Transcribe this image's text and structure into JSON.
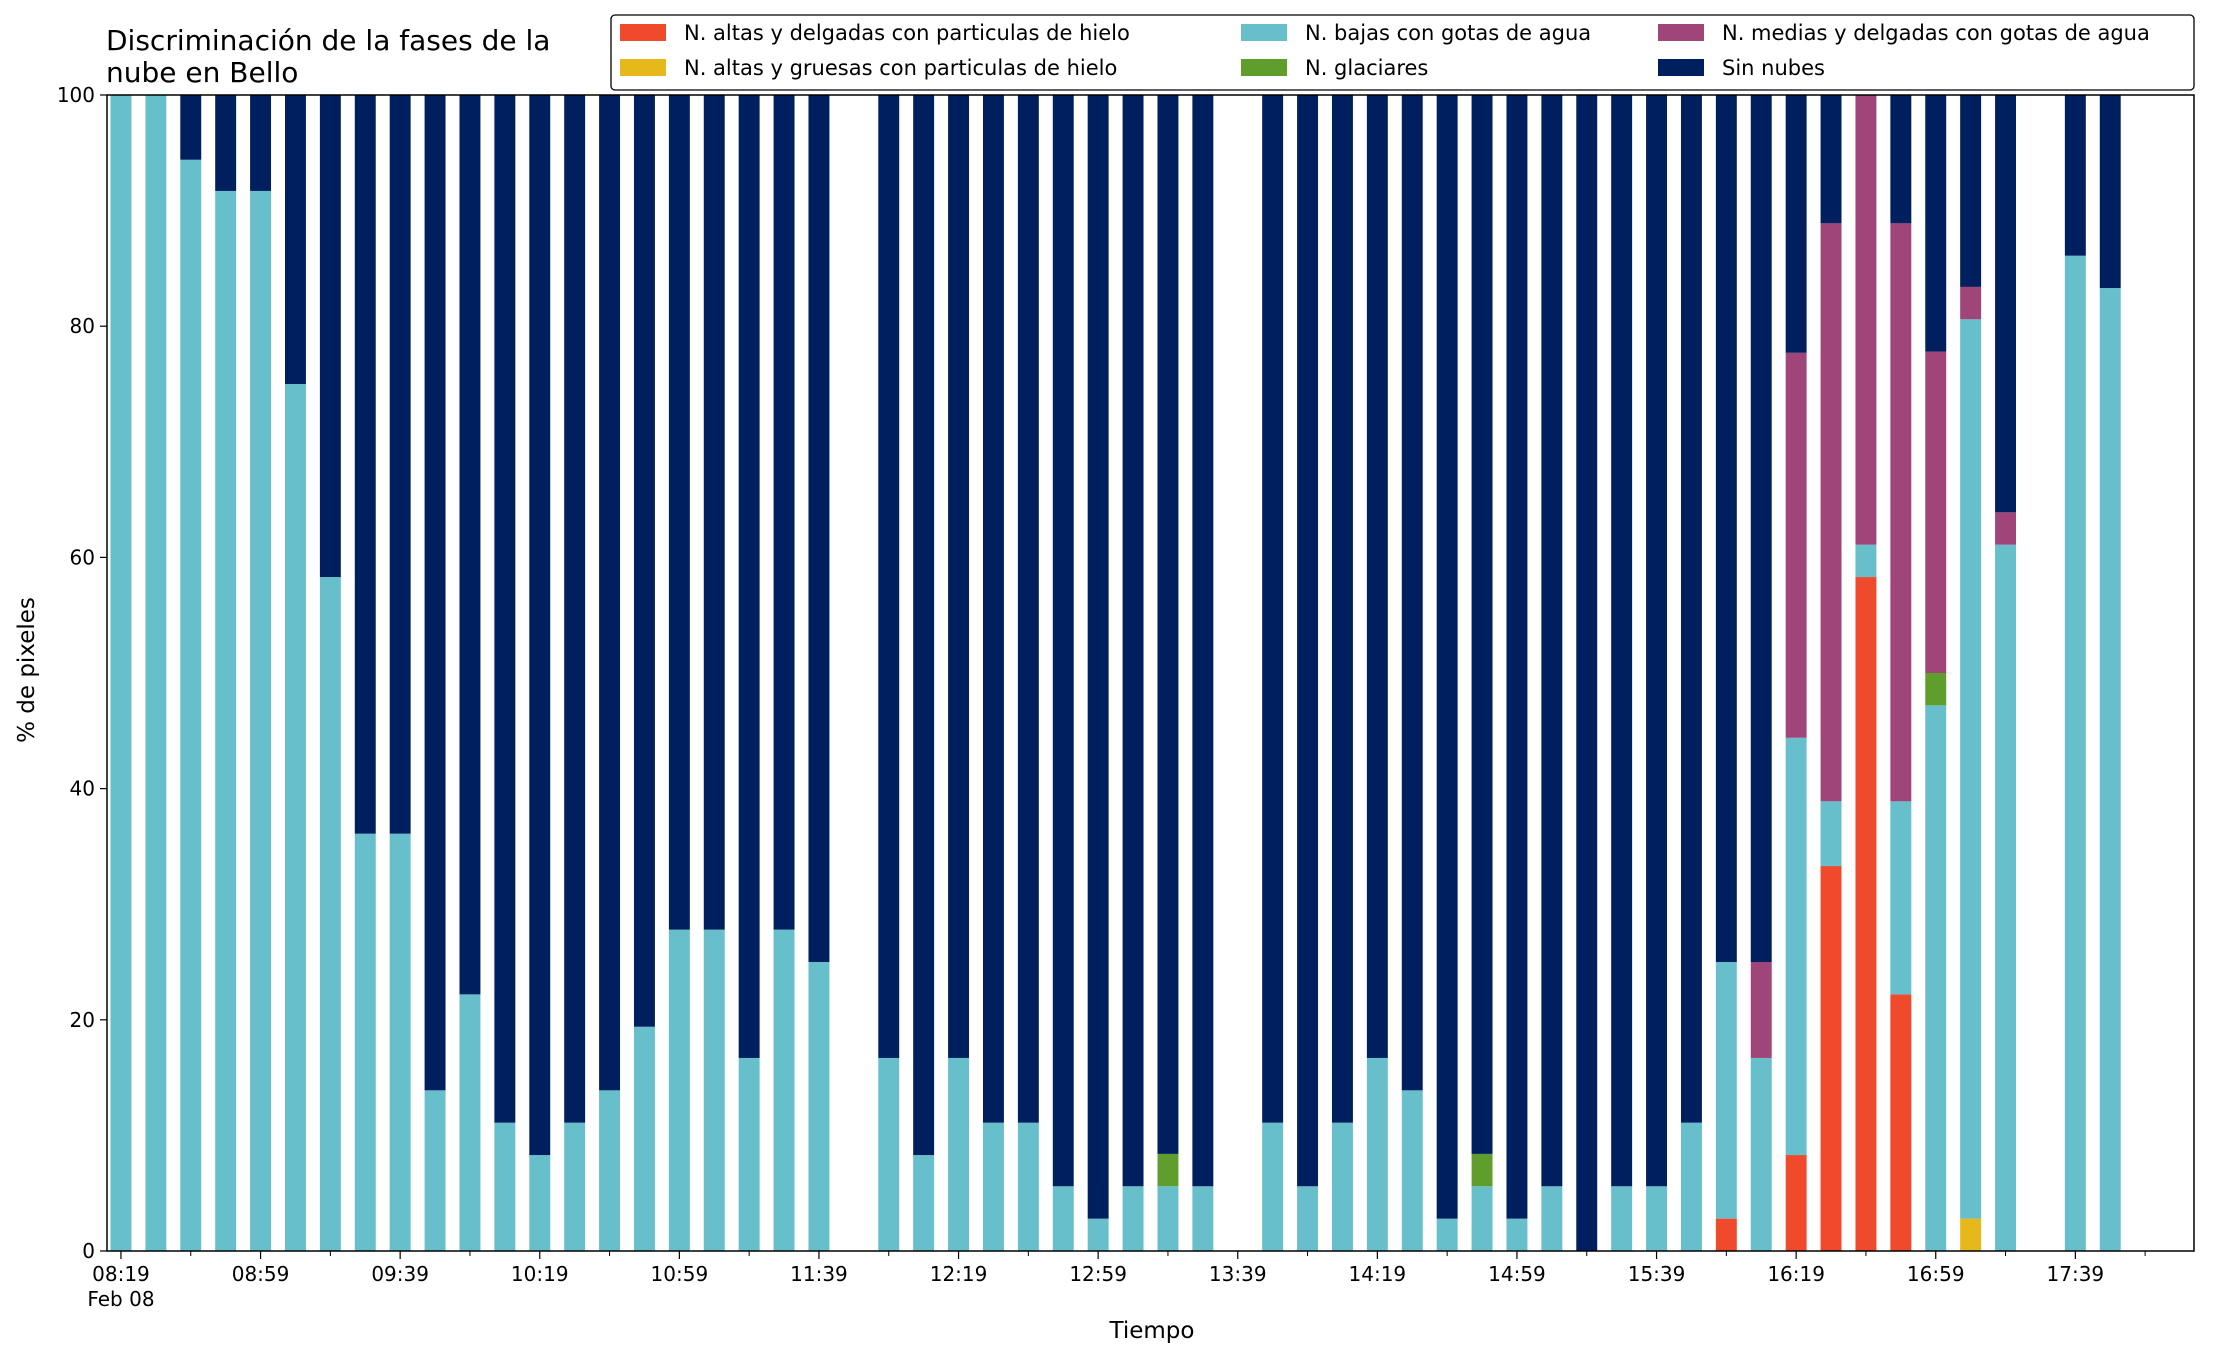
{
  "chart_data": {
    "type": "bar",
    "stacked": true,
    "title_lines": [
      "Discriminación de la fases de la",
      "nube en Bello"
    ],
    "xlabel": "Tiempo",
    "ylabel": "% de pixeles",
    "ylim": [
      0,
      100
    ],
    "yticks": [
      0,
      20,
      40,
      60,
      80,
      100
    ],
    "grid": false,
    "legend_placement": "top-right",
    "x_interval_minutes": 10,
    "x_start_time": "08:19",
    "x_end_time": "18:09",
    "x_date_label": "Feb 08",
    "xtick_labels": [
      "08:19",
      "08:59",
      "09:39",
      "10:19",
      "10:59",
      "11:39",
      "12:19",
      "12:59",
      "13:39",
      "14:19",
      "14:59",
      "15:39",
      "16:19",
      "16:59",
      "17:39"
    ],
    "categories": [
      "08:19",
      "08:29",
      "08:39",
      "08:49",
      "08:59",
      "09:09",
      "09:19",
      "09:29",
      "09:39",
      "09:49",
      "09:59",
      "10:09",
      "10:19",
      "10:29",
      "10:39",
      "10:49",
      "10:59",
      "11:09",
      "11:19",
      "11:29",
      "11:39",
      "11:49",
      "11:59",
      "12:09",
      "12:19",
      "12:29",
      "12:39",
      "12:49",
      "12:59",
      "13:09",
      "13:19",
      "13:29",
      "13:39",
      "13:49",
      "13:59",
      "14:09",
      "14:19",
      "14:29",
      "14:39",
      "14:49",
      "14:59",
      "15:09",
      "15:19",
      "15:29",
      "15:39",
      "15:49",
      "15:59",
      "16:09",
      "16:19",
      "16:29",
      "16:39",
      "16:49",
      "16:59",
      "17:09",
      "17:19",
      "17:29",
      "17:39",
      "17:49"
    ],
    "series": [
      {
        "name": "N. altas y delgadas con particulas de hielo",
        "color": "#ee4a2b",
        "values": [
          0,
          0,
          0,
          0,
          0,
          0,
          0,
          0,
          0,
          0,
          0,
          0,
          0,
          0,
          0,
          0,
          0,
          0,
          0,
          0,
          0,
          0,
          0,
          0,
          0,
          0,
          0,
          0,
          0,
          0,
          0,
          0,
          0,
          0,
          0,
          0,
          0,
          0,
          0,
          0,
          0,
          0,
          0,
          0,
          0,
          0,
          2.8,
          0,
          8.3,
          33.3,
          58.3,
          22.2,
          0,
          0,
          0,
          0,
          0,
          0
        ]
      },
      {
        "name": "N. altas y gruesas con particulas de hielo",
        "color": "#e6b81a",
        "values": [
          0,
          0,
          0,
          0,
          0,
          0,
          0,
          0,
          0,
          0,
          0,
          0,
          0,
          0,
          0,
          0,
          0,
          0,
          0,
          0,
          0,
          0,
          0,
          0,
          0,
          0,
          0,
          0,
          0,
          0,
          0,
          0,
          0,
          0,
          0,
          0,
          0,
          0,
          0,
          0,
          0,
          0,
          0,
          0,
          0,
          0,
          0,
          0,
          0,
          0,
          0,
          0,
          0,
          2.8,
          0,
          0,
          0,
          0
        ]
      },
      {
        "name": "N. bajas con gotas de agua",
        "color": "#66bfca",
        "values": [
          100,
          100,
          94.4,
          91.7,
          91.7,
          75,
          58.3,
          36.1,
          36.1,
          13.9,
          22.2,
          11.1,
          8.3,
          11.1,
          13.9,
          19.4,
          27.8,
          27.8,
          16.7,
          27.8,
          25,
          0,
          16.7,
          8.3,
          16.7,
          11.1,
          11.1,
          5.6,
          2.8,
          5.6,
          5.6,
          5.6,
          0,
          11.1,
          5.6,
          11.1,
          16.7,
          13.9,
          2.8,
          5.6,
          2.8,
          5.6,
          0,
          5.6,
          5.6,
          11.1,
          22.2,
          16.7,
          36.1,
          5.6,
          2.8,
          16.7,
          47.2,
          77.8,
          61.1,
          0,
          86.1,
          83.3
        ]
      },
      {
        "name": "N. glaciares",
        "color": "#5f9e2c",
        "values": [
          0,
          0,
          0,
          0,
          0,
          0,
          0,
          0,
          0,
          0,
          0,
          0,
          0,
          0,
          0,
          0,
          0,
          0,
          0,
          0,
          0,
          0,
          0,
          0,
          0,
          0,
          0,
          0,
          0,
          0,
          2.8,
          0,
          0,
          0,
          0,
          0,
          0,
          0,
          0,
          2.8,
          0,
          0,
          0,
          0,
          0,
          0,
          0,
          0,
          0,
          0,
          0,
          0,
          2.8,
          0,
          0,
          0,
          0,
          0
        ]
      },
      {
        "name": "N. medias y delgadas con gotas de agua",
        "color": "#a0457a",
        "values": [
          0,
          0,
          0,
          0,
          0,
          0,
          0,
          0,
          0,
          0,
          0,
          0,
          0,
          0,
          0,
          0,
          0,
          0,
          0,
          0,
          0,
          0,
          0,
          0,
          0,
          0,
          0,
          0,
          0,
          0,
          0,
          0,
          0,
          0,
          0,
          0,
          0,
          0,
          0,
          0,
          0,
          0,
          0,
          0,
          0,
          0,
          0,
          8.3,
          33.3,
          50,
          38.9,
          50,
          27.8,
          2.8,
          2.8,
          0,
          0,
          0
        ]
      },
      {
        "name": "Sin nubes",
        "color": "#001f5e",
        "values": [
          0,
          0,
          5.6,
          8.3,
          8.3,
          25,
          41.7,
          63.9,
          63.9,
          86.1,
          77.8,
          88.9,
          91.7,
          88.9,
          86.1,
          80.6,
          72.2,
          72.2,
          83.3,
          72.2,
          75,
          0,
          83.3,
          91.7,
          83.3,
          88.9,
          88.9,
          94.4,
          97.2,
          94.4,
          91.6,
          94.4,
          0,
          88.9,
          94.4,
          88.9,
          83.3,
          86.1,
          97.2,
          91.6,
          97.2,
          94.4,
          100,
          94.4,
          94.4,
          88.9,
          75,
          75,
          22.3,
          11.1,
          0,
          11.1,
          22.2,
          16.6,
          36.1,
          0,
          13.9,
          16.7
        ]
      }
    ]
  }
}
